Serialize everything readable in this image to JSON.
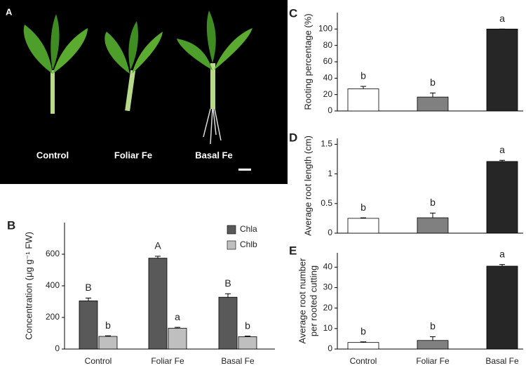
{
  "photo": {
    "panel_label": "A",
    "captions": [
      "Control",
      "Foliar Fe",
      "Basal Fe"
    ]
  },
  "chart_data": [
    {
      "type": "bar",
      "panel_label": "B",
      "ylabel": [
        "Concentration (μg g⁻¹ FW)"
      ],
      "categories": [
        "Control",
        "Foliar Fe",
        "Basal Fe"
      ],
      "series": [
        {
          "name": "Chla",
          "color": "#595959",
          "values": [
            305,
            575,
            328
          ],
          "errors": [
            18,
            12,
            22
          ],
          "letters": [
            "B",
            "A",
            "B"
          ]
        },
        {
          "name": "Chlb",
          "color": "#bfbfbf",
          "values": [
            80,
            132,
            78
          ],
          "errors": [
            4,
            5,
            4
          ],
          "letters": [
            "b",
            "a",
            "b"
          ]
        }
      ],
      "ylim": [
        0,
        800
      ],
      "yticks": [
        0,
        200,
        400,
        600
      ],
      "legend": "upper right"
    },
    {
      "type": "bar",
      "panel_label": "C",
      "ylabel": [
        "Rooting percentage (%)"
      ],
      "series": [
        {
          "colors": [
            "#ffffff",
            "#808080",
            "#262626"
          ],
          "values": [
            27,
            17,
            100
          ],
          "errors": [
            3,
            5,
            0
          ],
          "letters": [
            "b",
            "b",
            "a"
          ]
        }
      ],
      "ylim": [
        0,
        120
      ],
      "yticks": [
        0,
        20,
        40,
        60,
        80,
        100
      ]
    },
    {
      "type": "bar",
      "panel_label": "D",
      "ylabel": [
        "Average root length (cm)"
      ],
      "series": [
        {
          "colors": [
            "#ffffff",
            "#808080",
            "#262626"
          ],
          "values": [
            0.25,
            0.26,
            1.21
          ],
          "errors": [
            0.01,
            0.08,
            0.02
          ],
          "letters": [
            "b",
            "b",
            "a"
          ]
        }
      ],
      "ylim": [
        0,
        1.6
      ],
      "yticks": [
        0,
        0.5,
        1,
        1.5
      ]
    },
    {
      "type": "bar",
      "panel_label": "E",
      "ylabel": [
        "Average root number",
        "per rooted cutting"
      ],
      "categories": [
        "Control",
        "Foliar Fe",
        "Basal Fe"
      ],
      "series": [
        {
          "colors": [
            "#ffffff",
            "#808080",
            "#262626"
          ],
          "values": [
            3.2,
            4.2,
            40.5
          ],
          "errors": [
            0.3,
            1.8,
            0.8
          ],
          "letters": [
            "b",
            "b",
            "a"
          ]
        }
      ],
      "ylim": [
        0,
        47
      ],
      "yticks": [
        0,
        10,
        20,
        30,
        40
      ]
    }
  ]
}
